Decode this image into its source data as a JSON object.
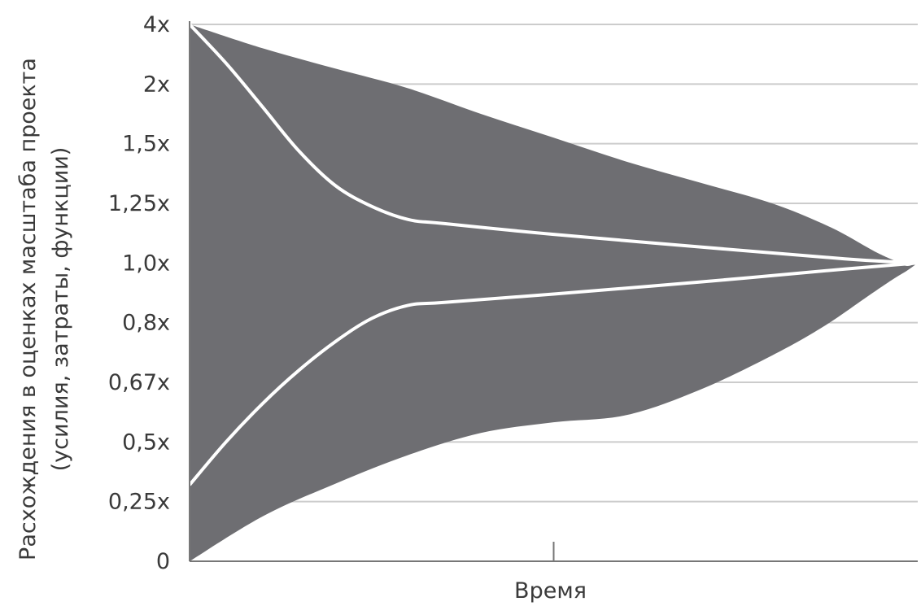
{
  "chart_data": {
    "type": "area",
    "xlabel": "Время",
    "ylabel_lines": [
      "Расхождения в оценках масштаба проекта",
      "(усилия, затраты, функции)"
    ],
    "y_ticks": [
      "0",
      "0,25x",
      "0,5x",
      "0,67x",
      "0,8x",
      "1,0x",
      "1,25x",
      "1,5x",
      "2x",
      "4x"
    ],
    "x_ticks": [
      0,
      0.5,
      1
    ],
    "x_range": [
      0,
      1
    ],
    "grid": true,
    "colors": {
      "band": "#6e6e72",
      "curve": "#ffffff",
      "grid": "#cccccc",
      "axis": "#777777"
    },
    "series": [
      {
        "role": "band-upper",
        "points": [
          [
            0,
            9
          ],
          [
            0.1,
            8.6
          ],
          [
            0.2,
            8.26
          ],
          [
            0.3,
            7.93
          ],
          [
            0.4,
            7.5
          ],
          [
            0.5,
            7.1
          ],
          [
            0.6,
            6.7
          ],
          [
            0.7,
            6.35
          ],
          [
            0.8,
            6.0
          ],
          [
            0.88,
            5.6
          ],
          [
            0.94,
            5.2
          ],
          [
            0.97,
            5.03
          ],
          [
            0.985,
            4.95
          ],
          [
            1,
            5
          ]
        ]
      },
      {
        "role": "band-lower",
        "points": [
          [
            0,
            0
          ],
          [
            0.1,
            0.75
          ],
          [
            0.2,
            1.3
          ],
          [
            0.3,
            1.78
          ],
          [
            0.4,
            2.15
          ],
          [
            0.5,
            2.33
          ],
          [
            0.6,
            2.45
          ],
          [
            0.7,
            2.87
          ],
          [
            0.8,
            3.45
          ],
          [
            0.87,
            3.93
          ],
          [
            0.93,
            4.43
          ],
          [
            0.965,
            4.72
          ],
          [
            0.985,
            4.87
          ],
          [
            1,
            5
          ]
        ]
      },
      {
        "role": "curve-upper",
        "points": [
          [
            0,
            9
          ],
          [
            0.05,
            8.35
          ],
          [
            0.1,
            7.62
          ],
          [
            0.15,
            6.88
          ],
          [
            0.2,
            6.3
          ],
          [
            0.25,
            5.95
          ],
          [
            0.3,
            5.73
          ],
          [
            0.35,
            5.66
          ],
          [
            0.5,
            5.48
          ],
          [
            0.7,
            5.27
          ],
          [
            0.9,
            5.07
          ],
          [
            1,
            5
          ]
        ]
      },
      {
        "role": "curve-lower",
        "points": [
          [
            0,
            1.28
          ],
          [
            0.05,
            2.0
          ],
          [
            0.1,
            2.64
          ],
          [
            0.15,
            3.2
          ],
          [
            0.2,
            3.68
          ],
          [
            0.25,
            4.07
          ],
          [
            0.3,
            4.29
          ],
          [
            0.35,
            4.34
          ],
          [
            0.5,
            4.48
          ],
          [
            0.7,
            4.68
          ],
          [
            0.9,
            4.9
          ],
          [
            1,
            5
          ]
        ]
      }
    ]
  }
}
